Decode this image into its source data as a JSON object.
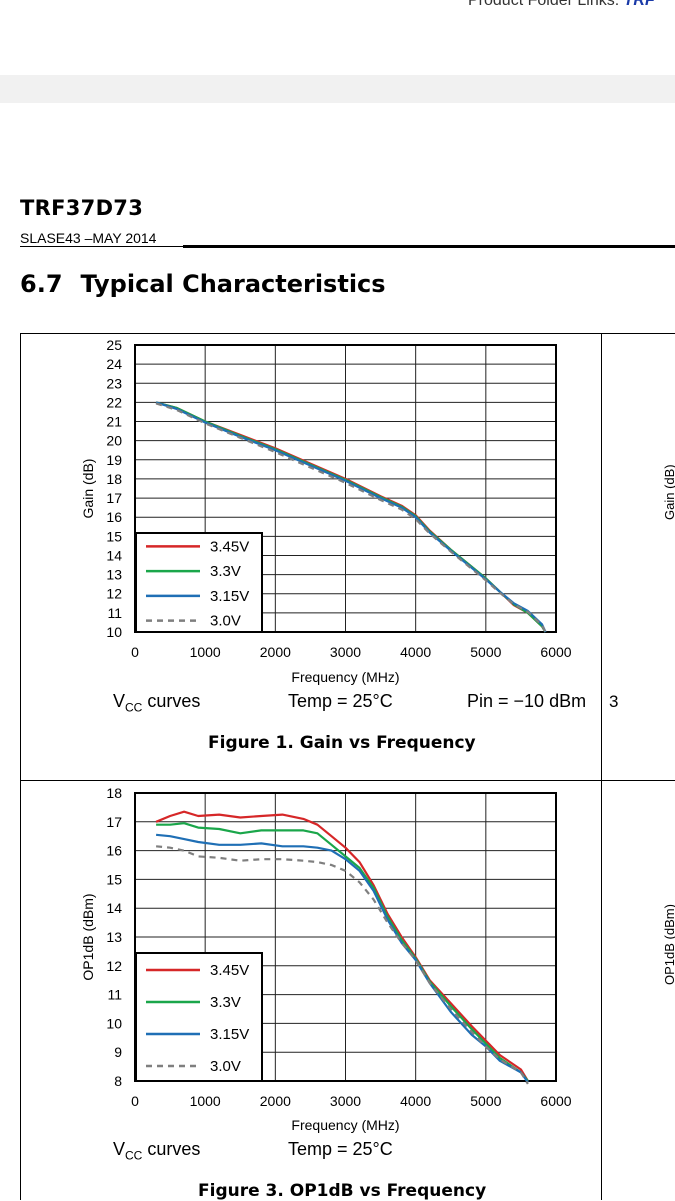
{
  "header": {
    "link_text": "Product Folder Links:",
    "product_link": "TRF"
  },
  "doc": {
    "title": "TRF37D73",
    "id_date": "SLASE43 –MAY 2014"
  },
  "section": {
    "number": "6.7",
    "title": "Typical Characteristics"
  },
  "right_panel": {
    "figure_number_fragment": "3",
    "axis1_fragment": "Gain (dB)",
    "axis2_fragment": "OP1dB (dBm)"
  },
  "colors": {
    "3.45V": "#d62728",
    "3.3V": "#1aa64a",
    "3.15V": "#1f6fb5",
    "3.0V": "#7f7f7f"
  },
  "chart_data": [
    {
      "type": "line",
      "title": "",
      "caption": "Figure 1.  Gain vs Frequency",
      "xlabel": "Frequency (MHz)",
      "ylabel": "Gain (dB)",
      "xlim": [
        0,
        6000
      ],
      "ylim": [
        10,
        25
      ],
      "xticks": [
        0,
        1000,
        2000,
        3000,
        4000,
        5000,
        6000
      ],
      "yticks": [
        10,
        11,
        12,
        13,
        14,
        15,
        16,
        17,
        18,
        19,
        20,
        21,
        22,
        23,
        24,
        25
      ],
      "grid": true,
      "legend": "bottom-left",
      "conditions": {
        "vcc": "V",
        "vcc_sub": "CC",
        "vcc_rest": " curves",
        "temp": "Temp = 25°C",
        "pin": "Pin = −10 dBm"
      },
      "series": [
        {
          "name": "3.45V",
          "dash": false,
          "x": [
            300,
            600,
            1000,
            1500,
            2000,
            2500,
            3000,
            3500,
            3800,
            4000,
            4200,
            4500,
            4800,
            5000,
            5200,
            5400,
            5600,
            5800,
            5850
          ],
          "y": [
            22.0,
            21.7,
            21.0,
            20.3,
            19.6,
            18.8,
            18.0,
            17.1,
            16.6,
            16.1,
            15.3,
            14.3,
            13.4,
            12.8,
            12.1,
            11.4,
            11.0,
            10.3,
            10.0
          ]
        },
        {
          "name": "3.3V",
          "dash": false,
          "x": [
            300,
            600,
            1000,
            1500,
            2000,
            2500,
            3000,
            3500,
            3800,
            4000,
            4200,
            4500,
            4800,
            5000,
            5200,
            5400,
            5600,
            5800,
            5850
          ],
          "y": [
            22.0,
            21.7,
            21.0,
            20.25,
            19.55,
            18.75,
            17.95,
            17.05,
            16.55,
            16.05,
            15.25,
            14.3,
            13.4,
            12.8,
            12.1,
            11.45,
            11.0,
            10.3,
            10.0
          ]
        },
        {
          "name": "3.15V",
          "dash": false,
          "x": [
            300,
            600,
            1000,
            1500,
            2000,
            2500,
            3000,
            3500,
            3800,
            4000,
            4200,
            4500,
            4800,
            5000,
            5200,
            5400,
            5600,
            5800,
            5850
          ],
          "y": [
            22.0,
            21.65,
            20.95,
            20.2,
            19.5,
            18.7,
            17.9,
            17.0,
            16.5,
            16.0,
            15.2,
            14.25,
            13.35,
            12.75,
            12.1,
            11.5,
            11.1,
            10.4,
            10.0
          ]
        },
        {
          "name": "3.0V",
          "dash": true,
          "x": [
            300,
            600,
            1000,
            1500,
            2000,
            2500,
            3000,
            3500,
            3800,
            4000,
            4200,
            4500,
            4800,
            5000,
            5200,
            5400,
            5600,
            5800,
            5850
          ],
          "y": [
            21.95,
            21.6,
            20.9,
            20.15,
            19.4,
            18.6,
            17.8,
            16.9,
            16.4,
            15.9,
            15.15,
            14.2,
            13.3,
            12.7,
            12.05,
            11.45,
            11.05,
            10.35,
            10.0
          ]
        }
      ]
    },
    {
      "type": "line",
      "title": "",
      "caption": "Figure 3.  OP1dB vs Frequency",
      "xlabel": "Frequency (MHz)",
      "ylabel": "OP1dB (dBm)",
      "xlim": [
        0,
        6000
      ],
      "ylim": [
        8,
        18
      ],
      "xticks": [
        0,
        1000,
        2000,
        3000,
        4000,
        5000,
        6000
      ],
      "yticks": [
        8,
        9,
        10,
        11,
        12,
        13,
        14,
        15,
        16,
        17,
        18
      ],
      "grid": true,
      "legend": "bottom-left",
      "conditions": {
        "vcc": "V",
        "vcc_sub": "CC",
        "vcc_rest": " curves",
        "temp": "Temp = 25°C"
      },
      "series": [
        {
          "name": "3.45V",
          "dash": false,
          "x": [
            300,
            500,
            700,
            900,
            1200,
            1500,
            1800,
            2100,
            2400,
            2600,
            2800,
            3000,
            3200,
            3400,
            3600,
            3800,
            4000,
            4200,
            4500,
            4800,
            5000,
            5200,
            5500,
            5600
          ],
          "y": [
            17.0,
            17.2,
            17.35,
            17.2,
            17.25,
            17.15,
            17.2,
            17.25,
            17.1,
            16.9,
            16.5,
            16.1,
            15.6,
            14.8,
            13.8,
            13.0,
            12.3,
            11.5,
            10.7,
            9.9,
            9.4,
            8.9,
            8.4,
            8.0
          ]
        },
        {
          "name": "3.3V",
          "dash": false,
          "x": [
            300,
            500,
            700,
            900,
            1200,
            1500,
            1800,
            2100,
            2400,
            2600,
            2800,
            3000,
            3200,
            3400,
            3600,
            3800,
            4000,
            4200,
            4500,
            4800,
            5000,
            5200,
            5500,
            5600
          ],
          "y": [
            16.9,
            16.9,
            16.95,
            16.8,
            16.75,
            16.6,
            16.7,
            16.7,
            16.7,
            16.6,
            16.2,
            15.8,
            15.4,
            14.7,
            13.7,
            12.9,
            12.25,
            11.45,
            10.6,
            9.8,
            9.3,
            8.8,
            8.3,
            8.0
          ]
        },
        {
          "name": "3.15V",
          "dash": false,
          "x": [
            300,
            500,
            700,
            900,
            1200,
            1500,
            1800,
            2100,
            2400,
            2600,
            2800,
            3000,
            3200,
            3400,
            3600,
            3800,
            4000,
            4200,
            4500,
            4800,
            5000,
            5200,
            5500,
            5600
          ],
          "y": [
            16.55,
            16.5,
            16.4,
            16.3,
            16.2,
            16.2,
            16.25,
            16.15,
            16.15,
            16.1,
            16.0,
            15.7,
            15.3,
            14.6,
            13.6,
            12.8,
            12.2,
            11.4,
            10.4,
            9.6,
            9.2,
            8.7,
            8.3,
            7.95
          ]
        },
        {
          "name": "3.0V",
          "dash": true,
          "x": [
            300,
            500,
            700,
            900,
            1200,
            1500,
            1800,
            2100,
            2400,
            2600,
            2800,
            3000,
            3200,
            3400,
            3600,
            3800,
            4000,
            4200,
            4500,
            4800,
            5000,
            5200,
            5500,
            5600
          ],
          "y": [
            16.15,
            16.1,
            16.0,
            15.8,
            15.75,
            15.65,
            15.7,
            15.7,
            15.65,
            15.6,
            15.5,
            15.3,
            14.9,
            14.3,
            13.5,
            12.8,
            12.2,
            11.4,
            10.5,
            9.7,
            9.2,
            8.75,
            8.3,
            7.9
          ]
        }
      ]
    }
  ]
}
